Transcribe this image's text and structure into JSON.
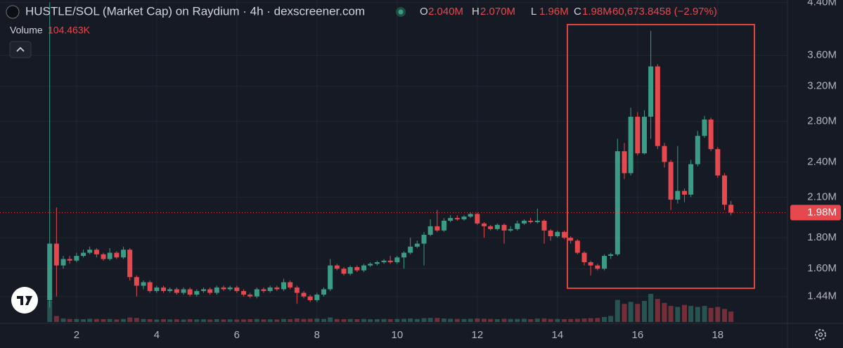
{
  "chart_data": {
    "type": "candlestick",
    "title": "HUSTLE/SOL (Market Cap) on Raydium · 4h · dexscreener.com",
    "ohlc_header": [
      {
        "key": "O",
        "value": "2.040M"
      },
      {
        "key": "H",
        "value": "2.070M"
      },
      {
        "key": "L",
        "value": "1.96M"
      },
      {
        "key": "C",
        "value": "1.98M"
      }
    ],
    "change_label": "-60,673.8458 (−2.97%)",
    "volume_title": "Volume",
    "last_volume_label": "104.463K",
    "x": [
      1.33,
      1.5,
      1.67,
      1.83,
      2,
      2.17,
      2.33,
      2.5,
      2.67,
      2.83,
      3,
      3.17,
      3.33,
      3.5,
      3.67,
      3.83,
      4,
      4.17,
      4.33,
      4.5,
      4.67,
      4.83,
      5,
      5.17,
      5.33,
      5.5,
      5.67,
      5.83,
      6,
      6.17,
      6.33,
      6.5,
      6.67,
      6.83,
      7,
      7.17,
      7.33,
      7.5,
      7.67,
      7.83,
      8,
      8.17,
      8.33,
      8.5,
      8.67,
      8.83,
      9,
      9.17,
      9.33,
      9.5,
      9.67,
      9.83,
      10,
      10.17,
      10.33,
      10.5,
      10.67,
      10.83,
      11,
      11.17,
      11.33,
      11.5,
      11.67,
      11.83,
      12,
      12.17,
      12.33,
      12.5,
      12.67,
      12.83,
      13,
      13.17,
      13.33,
      13.5,
      13.67,
      13.83,
      14,
      14.17,
      14.33,
      14.5,
      14.67,
      14.83,
      15,
      15.17,
      15.33,
      15.5,
      15.67,
      15.83,
      16,
      16.17,
      16.33,
      16.5,
      16.67,
      16.83,
      17,
      17.17,
      17.33,
      17.5,
      17.67,
      17.83,
      18,
      18.17,
      18.33
    ],
    "open": [
      1.42,
      1.76,
      1.62,
      1.66,
      1.65,
      1.68,
      1.7,
      1.72,
      1.69,
      1.66,
      1.7,
      1.67,
      1.72,
      1.55,
      1.5,
      1.52,
      1.47,
      1.49,
      1.47,
      1.48,
      1.46,
      1.48,
      1.45,
      1.47,
      1.48,
      1.46,
      1.49,
      1.48,
      1.49,
      1.47,
      1.45,
      1.44,
      1.48,
      1.47,
      1.49,
      1.48,
      1.52,
      1.49,
      1.46,
      1.44,
      1.42,
      1.45,
      1.48,
      1.62,
      1.6,
      1.57,
      1.61,
      1.59,
      1.62,
      1.63,
      1.64,
      1.65,
      1.64,
      1.67,
      1.7,
      1.74,
      1.76,
      1.82,
      1.88,
      1.85,
      1.92,
      1.94,
      1.93,
      1.95,
      1.97,
      1.9,
      1.88,
      1.86,
      1.89,
      1.85,
      1.86,
      1.9,
      1.92,
      1.91,
      1.92,
      1.85,
      1.81,
      1.84,
      1.8,
      1.78,
      1.7,
      1.64,
      1.62,
      1.6,
      1.68,
      1.69,
      2.5,
      2.3,
      2.85,
      2.48,
      2.85,
      3.45,
      2.55,
      2.4,
      2.08,
      2.15,
      2.12,
      2.38,
      2.65,
      2.82,
      2.52,
      2.28,
      2.04
    ],
    "high": [
      4.4,
      2.02,
      1.68,
      1.68,
      1.7,
      1.72,
      1.74,
      1.73,
      1.7,
      1.73,
      1.71,
      1.74,
      1.73,
      1.56,
      1.53,
      1.53,
      1.5,
      1.5,
      1.49,
      1.49,
      1.49,
      1.49,
      1.48,
      1.49,
      1.49,
      1.5,
      1.5,
      1.5,
      1.5,
      1.48,
      1.46,
      1.49,
      1.49,
      1.5,
      1.5,
      1.54,
      1.53,
      1.5,
      1.47,
      1.45,
      1.46,
      1.49,
      1.66,
      1.63,
      1.61,
      1.62,
      1.62,
      1.63,
      1.64,
      1.65,
      1.66,
      1.68,
      1.68,
      1.71,
      1.8,
      1.78,
      1.84,
      1.93,
      2.0,
      1.94,
      1.96,
      1.96,
      1.96,
      1.98,
      1.98,
      1.91,
      1.89,
      1.9,
      1.9,
      1.88,
      1.92,
      1.93,
      1.94,
      2.01,
      1.93,
      1.86,
      1.85,
      1.85,
      1.81,
      1.79,
      1.71,
      1.65,
      1.63,
      1.69,
      1.7,
      2.62,
      2.58,
      2.95,
      2.9,
      2.92,
      3.95,
      3.48,
      2.58,
      2.42,
      2.55,
      2.17,
      2.42,
      2.7,
      2.86,
      2.84,
      2.54,
      2.3,
      2.07
    ],
    "low": [
      1.38,
      1.44,
      1.6,
      1.63,
      1.64,
      1.67,
      1.69,
      1.67,
      1.65,
      1.65,
      1.66,
      1.66,
      1.53,
      1.44,
      1.48,
      1.46,
      1.46,
      1.46,
      1.46,
      1.45,
      1.45,
      1.44,
      1.44,
      1.46,
      1.45,
      1.45,
      1.47,
      1.47,
      1.46,
      1.44,
      1.43,
      1.43,
      1.46,
      1.46,
      1.47,
      1.47,
      1.48,
      1.4,
      1.43,
      1.41,
      1.41,
      1.44,
      1.47,
      1.59,
      1.56,
      1.56,
      1.58,
      1.58,
      1.61,
      1.62,
      1.63,
      1.63,
      1.63,
      1.6,
      1.69,
      1.73,
      1.62,
      1.81,
      1.84,
      1.84,
      1.91,
      1.92,
      1.92,
      1.94,
      1.89,
      1.8,
      1.85,
      1.85,
      1.76,
      1.84,
      1.85,
      1.89,
      1.9,
      1.9,
      1.76,
      1.78,
      1.8,
      1.79,
      1.76,
      1.69,
      1.62,
      1.56,
      1.59,
      1.59,
      1.66,
      1.68,
      2.25,
      2.28,
      2.46,
      2.47,
      2.62,
      2.52,
      2.35,
      2.0,
      2.05,
      2.06,
      2.1,
      2.36,
      2.63,
      2.5,
      2.26,
      2.0,
      1.96
    ],
    "close": [
      1.76,
      1.62,
      1.66,
      1.65,
      1.68,
      1.7,
      1.72,
      1.69,
      1.66,
      1.7,
      1.67,
      1.72,
      1.55,
      1.5,
      1.52,
      1.47,
      1.49,
      1.47,
      1.48,
      1.46,
      1.48,
      1.45,
      1.47,
      1.48,
      1.46,
      1.49,
      1.48,
      1.49,
      1.47,
      1.45,
      1.44,
      1.48,
      1.47,
      1.49,
      1.48,
      1.52,
      1.49,
      1.46,
      1.44,
      1.42,
      1.45,
      1.48,
      1.62,
      1.6,
      1.57,
      1.61,
      1.59,
      1.62,
      1.63,
      1.64,
      1.65,
      1.64,
      1.67,
      1.7,
      1.74,
      1.76,
      1.82,
      1.88,
      1.85,
      1.92,
      1.94,
      1.93,
      1.95,
      1.97,
      1.9,
      1.88,
      1.86,
      1.89,
      1.85,
      1.86,
      1.9,
      1.92,
      1.91,
      1.92,
      1.85,
      1.81,
      1.84,
      1.8,
      1.78,
      1.7,
      1.64,
      1.62,
      1.6,
      1.68,
      1.69,
      2.5,
      2.3,
      2.85,
      2.48,
      2.85,
      3.45,
      2.55,
      2.4,
      2.08,
      2.15,
      2.12,
      2.38,
      2.65,
      2.82,
      2.52,
      2.28,
      2.04,
      1.98
    ],
    "volume": [
      210,
      60,
      35,
      30,
      30,
      28,
      32,
      30,
      28,
      30,
      26,
      30,
      45,
      40,
      30,
      28,
      25,
      28,
      26,
      27,
      25,
      28,
      26,
      27,
      25,
      28,
      26,
      27,
      25,
      26,
      28,
      30,
      26,
      27,
      25,
      30,
      28,
      35,
      30,
      32,
      34,
      30,
      45,
      30,
      28,
      30,
      28,
      30,
      27,
      28,
      30,
      28,
      30,
      32,
      35,
      30,
      38,
      40,
      40,
      35,
      32,
      30,
      30,
      32,
      35,
      32,
      30,
      28,
      32,
      30,
      30,
      32,
      28,
      34,
      35,
      30,
      30,
      28,
      30,
      32,
      35,
      38,
      40,
      50,
      60,
      220,
      180,
      200,
      180,
      210,
      280,
      230,
      190,
      160,
      150,
      170,
      160,
      150,
      160,
      140,
      150,
      130,
      104.463
    ],
    "up_color": "#3b9c85",
    "down_color": "#e5484d",
    "log_scale": true,
    "grid": true,
    "xlim": [
      0.09,
      19.74
    ],
    "ylim": [
      1.3,
      4.44
    ],
    "xticks": [
      2,
      4,
      6,
      8,
      10,
      12,
      14,
      16,
      18
    ],
    "yticks": [
      {
        "value": 1.44,
        "label": "1.44M"
      },
      {
        "value": 1.6,
        "label": "1.60M"
      },
      {
        "value": 1.8,
        "label": "1.80M"
      },
      {
        "value": 2.1,
        "label": "2.10M"
      },
      {
        "value": 2.4,
        "label": "2.40M"
      },
      {
        "value": 2.8,
        "label": "2.80M"
      },
      {
        "value": 3.2,
        "label": "3.20M"
      },
      {
        "value": 3.6,
        "label": "3.60M"
      },
      {
        "value": 4.4,
        "label": "4.40M"
      }
    ],
    "last_price": {
      "value": 1.98,
      "label": "1.98M"
    }
  }
}
